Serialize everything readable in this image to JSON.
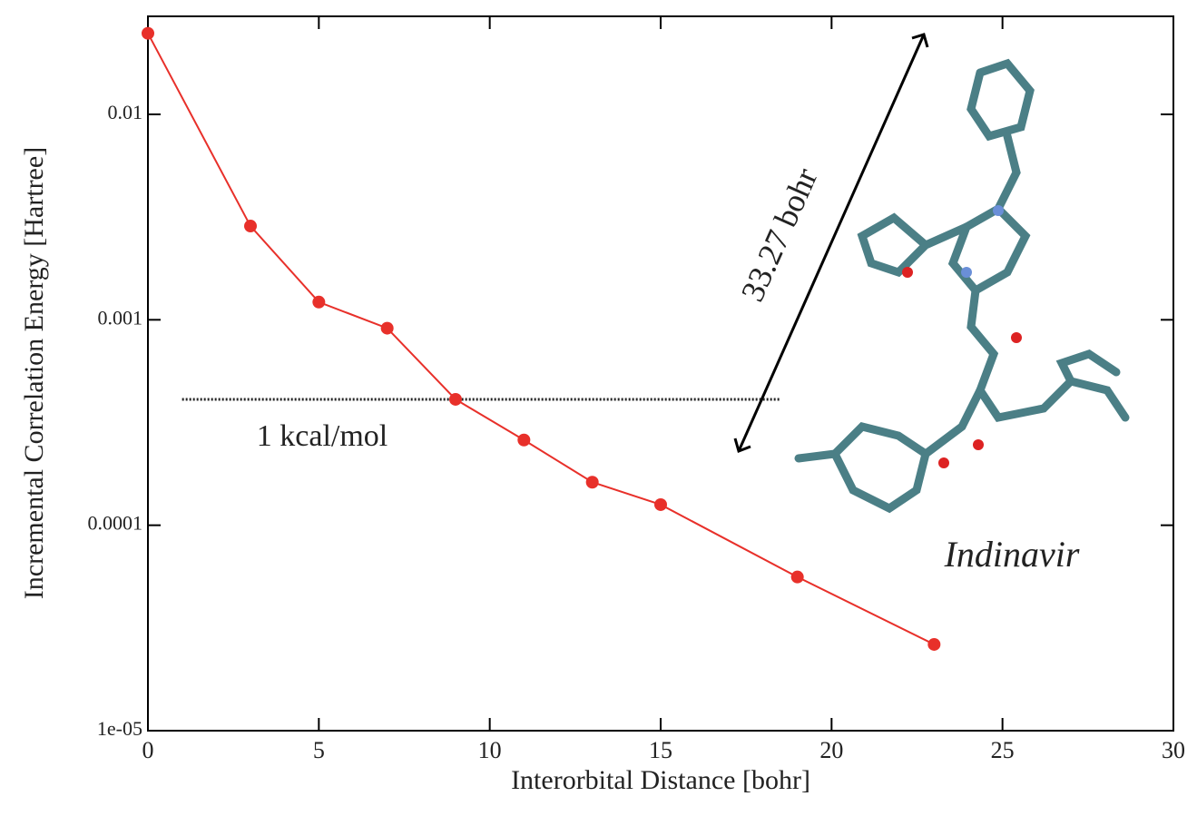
{
  "chart_data": {
    "type": "line",
    "x_label": "Interorbital Distance [bohr]",
    "y_label": "Incremental Correlation Energy [Hartree]",
    "x": [
      0,
      3,
      5,
      7,
      9,
      11,
      13,
      15,
      19,
      23
    ],
    "series": [
      {
        "name": "Indinavir",
        "color": "#e8302a",
        "values": [
          0.0248,
          0.00286,
          0.00122,
          0.00091,
          0.00041,
          0.00026,
          0.000162,
          0.000126,
          5.6e-05,
          2.63e-05
        ]
      }
    ],
    "xlim": [
      0,
      30
    ],
    "xticks": [
      0,
      5,
      10,
      15,
      20,
      25,
      30
    ],
    "ylim": [
      1e-05,
      0.03
    ],
    "log_y": true,
    "yticks": [
      {
        "value": 1e-05,
        "label": "1e-05"
      },
      0.0001,
      0.001,
      0.01
    ],
    "hline": {
      "label": "1 kcal/mol",
      "value": 0.00041,
      "x_range": [
        1,
        18.5
      ]
    },
    "annotations": {
      "distance": "33.27 bohr",
      "molecule": "Indinavir"
    }
  }
}
